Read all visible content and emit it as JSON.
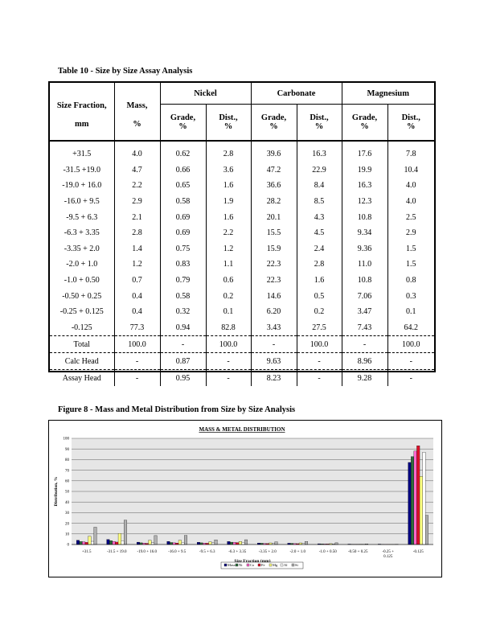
{
  "table_caption": "Table 10 - Size by Size Assay Analysis",
  "figure_caption": "Figure 8 - Mass and Metal Distribution from Size by Size Analysis",
  "table": {
    "header": {
      "size_fraction": "Size Fraction,",
      "size_unit": "mm",
      "mass": "Mass,",
      "mass_unit": "%",
      "groups": [
        "Nickel",
        "Carbonate",
        "Magnesium"
      ],
      "grade": "Grade,",
      "dist": "Dist.,",
      "pct": "%"
    },
    "rows": [
      [
        "+31.5",
        "4.0",
        "0.62",
        "2.8",
        "39.6",
        "16.3",
        "17.6",
        "7.8"
      ],
      [
        "-31.5 +19.0",
        "4.7",
        "0.66",
        "3.6",
        "47.2",
        "22.9",
        "19.9",
        "10.4"
      ],
      [
        "-19.0 + 16.0",
        "2.2",
        "0.65",
        "1.6",
        "36.6",
        "8.4",
        "16.3",
        "4.0"
      ],
      [
        "-16.0 + 9.5",
        "2.9",
        "0.58",
        "1.9",
        "28.2",
        "8.5",
        "12.3",
        "4.0"
      ],
      [
        "-9.5 + 6.3",
        "2.1",
        "0.69",
        "1.6",
        "20.1",
        "4.3",
        "10.8",
        "2.5"
      ],
      [
        "-6.3 + 3.35",
        "2.8",
        "0.69",
        "2.2",
        "15.5",
        "4.5",
        "9.34",
        "2.9"
      ],
      [
        "-3.35 + 2.0",
        "1.4",
        "0.75",
        "1.2",
        "15.9",
        "2.4",
        "9.36",
        "1.5"
      ],
      [
        "-2.0 + 1.0",
        "1.2",
        "0.83",
        "1.1",
        "22.3",
        "2.8",
        "11.0",
        "1.5"
      ],
      [
        "-1.0 + 0.50",
        "0.7",
        "0.79",
        "0.6",
        "22.3",
        "1.6",
        "10.8",
        "0.8"
      ],
      [
        "-0.50 + 0.25",
        "0.4",
        "0.58",
        "0.2",
        "14.6",
        "0.5",
        "7.06",
        "0.3"
      ],
      [
        "-0.25 + 0.125",
        "0.4",
        "0.32",
        "0.1",
        "6.20",
        "0.2",
        "3.47",
        "0.1"
      ],
      [
        "-0.125",
        "77.3",
        "0.94",
        "82.8",
        "3.43",
        "27.5",
        "7.43",
        "64.2"
      ]
    ],
    "summary": [
      [
        "Total",
        "100.0",
        "-",
        "100.0",
        "-",
        "100.0",
        "-",
        "100.0"
      ],
      [
        "Calc Head",
        "-",
        "0.87",
        "-",
        "9.63",
        "-",
        "8.96",
        "-"
      ],
      [
        "Assay Head",
        "-",
        "0.95",
        "-",
        "8.23",
        "-",
        "9.28",
        "-"
      ]
    ]
  },
  "chart_data": {
    "type": "bar",
    "title": "MASS & METAL DISTRIBUTION",
    "xlabel": "Size Fraction  (mm)",
    "ylabel": "Distribution, %",
    "ylim": [
      0,
      100
    ],
    "yticks": [
      0,
      10,
      20,
      30,
      40,
      50,
      60,
      70,
      80,
      90,
      100
    ],
    "grid": true,
    "legend_position": "bottom",
    "categories": [
      "+31.5",
      "-31.5 + 19.0",
      "-19.0 + 16.0",
      "-16.0 + 9.5",
      "-9.5 + 6.3",
      "-6.3 + 3.35",
      "-3.35 + 2.0",
      "-2.0 + 1.0",
      "-1.0 + 0.50",
      "-0.50 + 0.25",
      "-0.25 + 0.125",
      "-0.125"
    ],
    "series": [
      {
        "name": "Mass",
        "color": "#000080",
        "values": [
          4.0,
          4.7,
          2.2,
          2.9,
          2.1,
          2.8,
          1.4,
          1.2,
          0.7,
          0.4,
          0.4,
          77.3
        ]
      },
      {
        "name": "Ni",
        "color": "#2e6e3e",
        "values": [
          2.8,
          3.6,
          1.6,
          1.9,
          1.6,
          2.2,
          1.2,
          1.1,
          0.6,
          0.2,
          0.1,
          82.8
        ]
      },
      {
        "name": "Co",
        "color": "#ff66cc",
        "values": [
          2.5,
          2.9,
          1.4,
          1.6,
          1.4,
          2.0,
          1.0,
          0.9,
          0.5,
          0.2,
          0.1,
          88.0
        ]
      },
      {
        "name": "Fe",
        "color": "#e0102a",
        "values": [
          2.0,
          2.3,
          1.1,
          1.4,
          1.2,
          1.8,
          0.9,
          0.8,
          0.5,
          0.2,
          0.1,
          93.0
        ]
      },
      {
        "name": "Mg",
        "color": "#ffff80",
        "values": [
          7.8,
          10.4,
          4.0,
          4.0,
          2.5,
          2.9,
          1.5,
          1.5,
          0.8,
          0.3,
          0.1,
          64.2
        ]
      },
      {
        "name": "Al",
        "color": "#ffffff",
        "values": [
          3.0,
          3.5,
          1.8,
          2.0,
          1.6,
          2.0,
          1.0,
          0.9,
          0.5,
          0.2,
          0.1,
          87.0
        ]
      },
      {
        "name": "Si",
        "color": "#b0b0b0",
        "values": [
          16.3,
          22.9,
          8.4,
          8.5,
          4.3,
          4.5,
          2.4,
          2.8,
          1.6,
          0.5,
          0.2,
          27.5
        ]
      }
    ]
  }
}
